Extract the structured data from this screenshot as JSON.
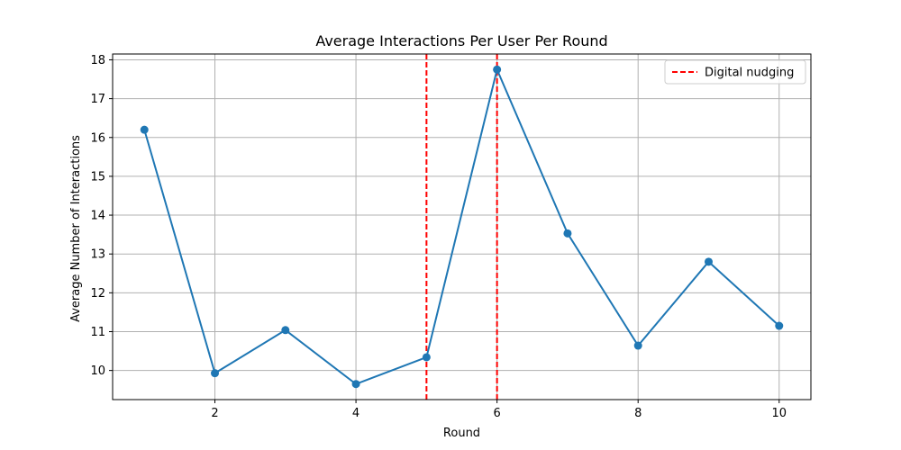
{
  "chart_data": {
    "type": "line",
    "title": "Average Interactions Per User Per Round",
    "xlabel": "Round",
    "ylabel": "Average Number of Interactions",
    "xlim": [
      0.55,
      10.45
    ],
    "ylim": [
      9.25,
      18.15
    ],
    "xticks": [
      2,
      4,
      6,
      8,
      10
    ],
    "yticks": [
      10,
      11,
      12,
      13,
      14,
      15,
      16,
      17,
      18
    ],
    "grid": true,
    "legend_position": "top-right",
    "series": [
      {
        "x": [
          1,
          2,
          3,
          4,
          5,
          6,
          7,
          8,
          9,
          10
        ],
        "y": [
          16.2,
          9.93,
          11.04,
          9.65,
          10.34,
          17.75,
          13.53,
          10.64,
          12.8,
          11.15
        ],
        "color": "#1f77b4",
        "marker": "circle"
      }
    ],
    "vlines": [
      {
        "x": 5,
        "color": "#ff0000",
        "style": "dashed",
        "label": "Digital nudging"
      },
      {
        "x": 6,
        "color": "#ff0000",
        "style": "dashed",
        "label": ""
      }
    ],
    "legend": [
      {
        "label": "Digital nudging",
        "color": "#ff0000",
        "style": "dashed"
      }
    ]
  }
}
